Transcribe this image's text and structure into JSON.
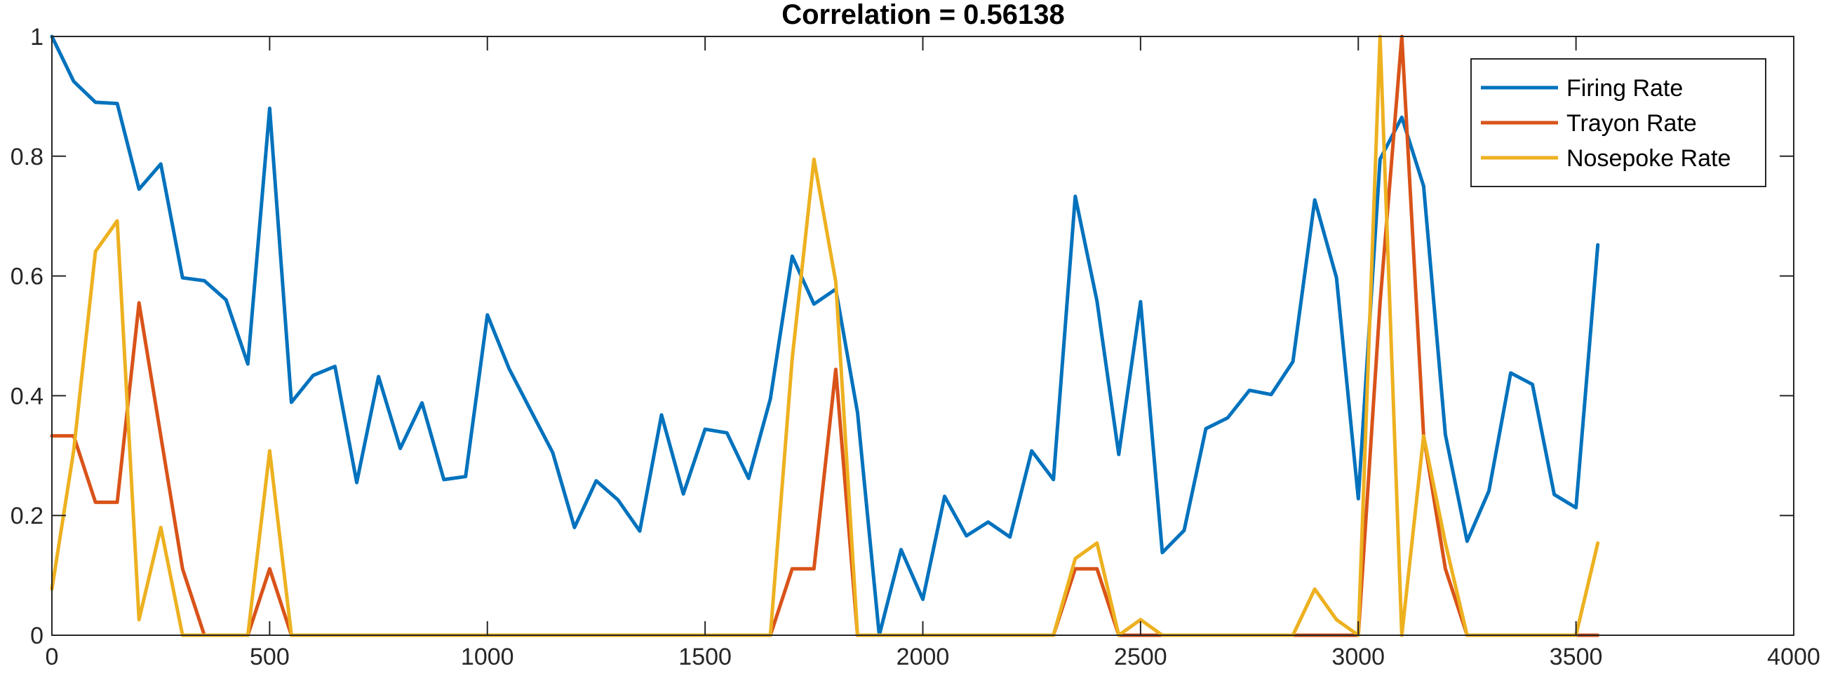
{
  "chart_data": {
    "type": "line",
    "title": "Correlation = 0.56138",
    "xlabel": "",
    "ylabel": "",
    "xlim": [
      0,
      4000
    ],
    "ylim": [
      0,
      1
    ],
    "xticks": [
      0,
      500,
      1000,
      1500,
      2000,
      2500,
      3000,
      3500,
      4000
    ],
    "yticks": [
      0,
      0.2,
      0.4,
      0.6,
      0.8,
      1
    ],
    "grid": false,
    "legend_position": "top-right",
    "series": [
      {
        "name": "Firing Rate",
        "color": "#0072BD",
        "x": [
          0,
          50,
          100,
          150,
          200,
          250,
          300,
          350,
          400,
          450,
          500,
          550,
          600,
          650,
          700,
          750,
          800,
          850,
          900,
          950,
          1000,
          1050,
          1100,
          1150,
          1200,
          1250,
          1300,
          1350,
          1400,
          1450,
          1500,
          1550,
          1600,
          1650,
          1700,
          1750,
          1800,
          1850,
          1900,
          1950,
          2000,
          2050,
          2100,
          2150,
          2200,
          2250,
          2300,
          2350,
          2400,
          2450,
          2500,
          2550,
          2600,
          2650,
          2700,
          2750,
          2800,
          2850,
          2900,
          2950,
          3000,
          3050,
          3100,
          3150,
          3200,
          3250,
          3300,
          3350,
          3400,
          3450,
          3500,
          3550
        ],
        "y": [
          1.0,
          0.925,
          0.89,
          0.888,
          0.745,
          0.787,
          0.597,
          0.592,
          0.56,
          0.453,
          0.88,
          0.389,
          0.434,
          0.449,
          0.255,
          0.432,
          0.312,
          0.388,
          0.26,
          0.265,
          0.535,
          0.445,
          0.375,
          0.305,
          0.18,
          0.258,
          0.226,
          0.174,
          0.368,
          0.236,
          0.344,
          0.338,
          0.262,
          0.395,
          0.633,
          0.553,
          0.578,
          0.372,
          0.0,
          0.143,
          0.06,
          0.232,
          0.166,
          0.189,
          0.164,
          0.308,
          0.26,
          0.733,
          0.558,
          0.302,
          0.557,
          0.138,
          0.175,
          0.345,
          0.363,
          0.409,
          0.402,
          0.457,
          0.727,
          0.597,
          0.228,
          0.795,
          0.865,
          0.75,
          0.335,
          0.157,
          0.241,
          0.438,
          0.419,
          0.235,
          0.213,
          0.652
        ]
      },
      {
        "name": "Trayon Rate",
        "color": "#D95319",
        "x": [
          0,
          50,
          100,
          150,
          200,
          250,
          300,
          350,
          400,
          450,
          500,
          550,
          600,
          650,
          700,
          750,
          800,
          850,
          900,
          950,
          1000,
          1050,
          1100,
          1150,
          1200,
          1250,
          1300,
          1350,
          1400,
          1450,
          1500,
          1550,
          1600,
          1650,
          1700,
          1750,
          1800,
          1850,
          1900,
          1950,
          2000,
          2050,
          2100,
          2150,
          2200,
          2250,
          2300,
          2350,
          2400,
          2450,
          2500,
          2550,
          2600,
          2650,
          2700,
          2750,
          2800,
          2850,
          2900,
          2950,
          3000,
          3050,
          3100,
          3150,
          3200,
          3250,
          3300,
          3350,
          3400,
          3450,
          3500,
          3550
        ],
        "y": [
          0.333,
          0.333,
          0.222,
          0.222,
          0.555,
          0.333,
          0.111,
          0,
          0,
          0,
          0.111,
          0,
          0,
          0,
          0,
          0,
          0,
          0,
          0,
          0,
          0,
          0,
          0,
          0,
          0,
          0,
          0,
          0,
          0,
          0,
          0,
          0,
          0,
          0,
          0.111,
          0.111,
          0.444,
          0,
          0,
          0,
          0,
          0,
          0,
          0,
          0,
          0,
          0,
          0.111,
          0.111,
          0,
          0,
          0,
          0,
          0,
          0,
          0,
          0,
          0,
          0,
          0,
          0,
          0.555,
          1.0,
          0.333,
          0.111,
          0,
          0,
          0,
          0,
          0,
          0,
          0
        ]
      },
      {
        "name": "Nosepoke Rate",
        "color": "#EDB120",
        "x": [
          0,
          50,
          100,
          150,
          200,
          250,
          300,
          350,
          400,
          450,
          500,
          550,
          600,
          650,
          700,
          750,
          800,
          850,
          900,
          950,
          1000,
          1050,
          1100,
          1150,
          1200,
          1250,
          1300,
          1350,
          1400,
          1450,
          1500,
          1550,
          1600,
          1650,
          1700,
          1750,
          1800,
          1850,
          1900,
          1950,
          2000,
          2050,
          2100,
          2150,
          2200,
          2250,
          2300,
          2350,
          2400,
          2450,
          2500,
          2550,
          2600,
          2650,
          2700,
          2750,
          2800,
          2850,
          2900,
          2950,
          3000,
          3050,
          3100,
          3150,
          3200,
          3250,
          3300,
          3350,
          3400,
          3450,
          3500,
          3550
        ],
        "y": [
          0.077,
          0.308,
          0.641,
          0.692,
          0.026,
          0.18,
          0,
          0,
          0,
          0,
          0.308,
          0,
          0,
          0,
          0,
          0,
          0,
          0,
          0,
          0,
          0,
          0,
          0,
          0,
          0,
          0,
          0,
          0,
          0,
          0,
          0,
          0,
          0,
          0,
          0.462,
          0.795,
          0.59,
          0,
          0,
          0,
          0,
          0,
          0,
          0,
          0,
          0,
          0,
          0.128,
          0.154,
          0,
          0.026,
          0,
          0,
          0,
          0,
          0,
          0,
          0,
          0.077,
          0.026,
          0,
          1.0,
          0,
          0.333,
          0.154,
          0,
          0,
          0,
          0,
          0,
          0,
          0.154
        ]
      }
    ]
  }
}
